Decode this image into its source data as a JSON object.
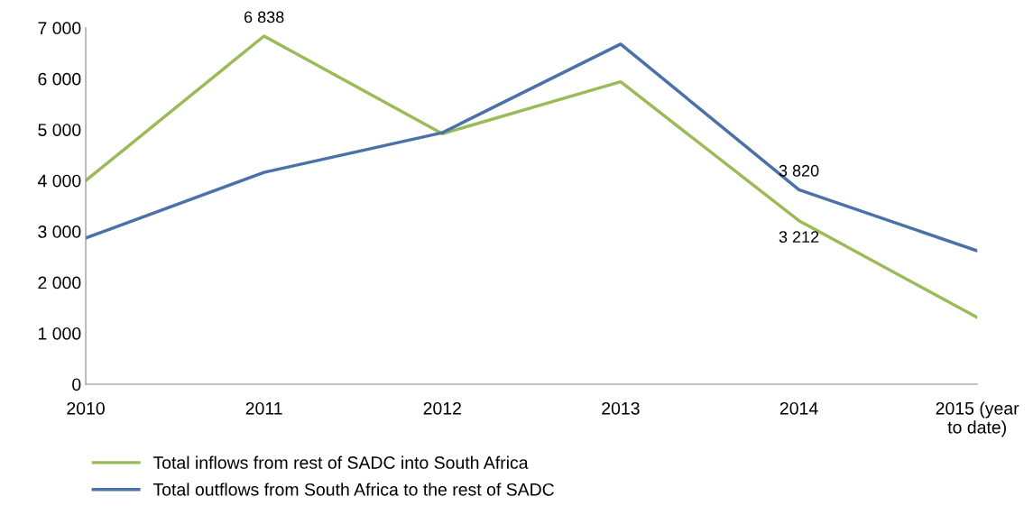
{
  "chart_data": {
    "type": "line",
    "categories": [
      "2010",
      "2011",
      "2012",
      "2013",
      "2014",
      "2015 (year\nto date)"
    ],
    "series": [
      {
        "name": "Total inflows from rest of SADC into South Africa",
        "color": "#9bbb59",
        "values": [
          4000,
          6838,
          4920,
          5940,
          3212,
          1310
        ],
        "value_labels": [
          null,
          "6 838",
          null,
          null,
          "3 212",
          null
        ]
      },
      {
        "name": "Total outflows from South Africa to the rest of SADC",
        "color": "#4a71a8",
        "values": [
          2870,
          4160,
          4940,
          6680,
          3820,
          2620
        ],
        "value_labels": [
          null,
          null,
          null,
          null,
          "3 820",
          null
        ]
      }
    ],
    "ylim": [
      0,
      7000
    ],
    "yticks": [
      {
        "value": 0,
        "label": "0"
      },
      {
        "value": 1000,
        "label": "1 000"
      },
      {
        "value": 2000,
        "label": "2 000"
      },
      {
        "value": 3000,
        "label": "3 000"
      },
      {
        "value": 4000,
        "label": "4 000"
      },
      {
        "value": 5000,
        "label": "5 000"
      },
      {
        "value": 6000,
        "label": "6 000"
      },
      {
        "value": 7000,
        "label": "7 000"
      }
    ],
    "grid": false,
    "legend": "bottom",
    "marker": "none",
    "line_style": "solid"
  }
}
